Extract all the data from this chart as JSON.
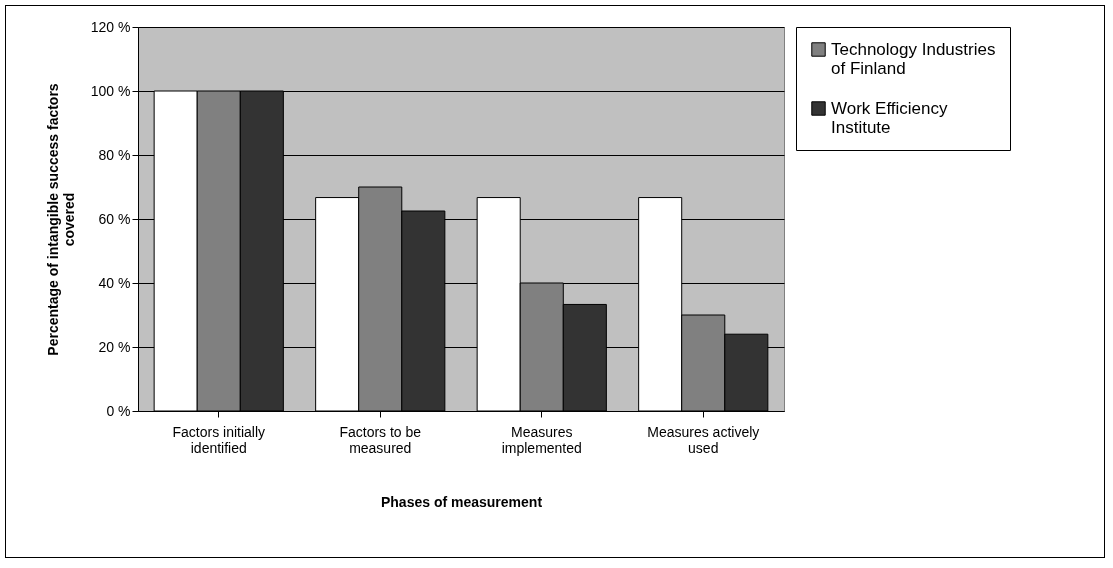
{
  "chart_data": {
    "type": "bar",
    "xlabel": "Phases of measurement",
    "ylabel": "Percentage of intangible success factors covered",
    "categories": [
      "Factors initially identified",
      "Factors to be measured",
      "Measures implemented",
      "Measures actively used"
    ],
    "series": [
      {
        "color": "#ffffff",
        "values": [
          100,
          66.7,
          66.7,
          66.7
        ]
      },
      {
        "name": "Technology Industries of Finland",
        "color": "#808080",
        "values": [
          100,
          70,
          40,
          30
        ]
      },
      {
        "name": "Work Efficiency Institute",
        "color": "#333333",
        "values": [
          100,
          62.5,
          33.3,
          24
        ]
      }
    ],
    "ylim": [
      0,
      120
    ],
    "yticks": [
      {
        "value": 0,
        "label": "0 %"
      },
      {
        "value": 20,
        "label": "20 %"
      },
      {
        "value": 40,
        "label": "40 %"
      },
      {
        "value": 60,
        "label": "60 %"
      },
      {
        "value": 80,
        "label": "80 %"
      },
      {
        "value": 100,
        "label": "100 %"
      },
      {
        "value": 120,
        "label": "120 %"
      }
    ],
    "grid": "y",
    "legend": "right"
  }
}
